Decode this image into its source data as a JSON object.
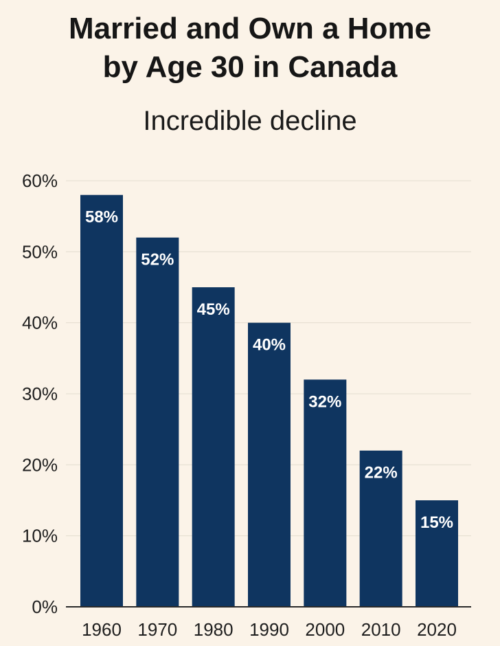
{
  "chart_data": {
    "type": "bar",
    "title_lines": [
      "Married and Own a Home",
      "by Age 30 in Canada"
    ],
    "subtitle": "Incredible decline",
    "categories": [
      "1960",
      "1970",
      "1980",
      "1990",
      "2000",
      "2010",
      "2020"
    ],
    "values": [
      58,
      52,
      45,
      40,
      32,
      22,
      15
    ],
    "data_labels": [
      "58%",
      "52%",
      "45%",
      "40%",
      "32%",
      "22%",
      "15%"
    ],
    "y_ticks": [
      0,
      10,
      20,
      30,
      40,
      50,
      60
    ],
    "y_tick_labels": [
      "0%",
      "10%",
      "20%",
      "30%",
      "40%",
      "50%",
      "60%"
    ],
    "ylim": [
      0,
      60
    ],
    "xlabel": "",
    "ylabel": "",
    "grid": true,
    "bar_color": "#0f3560",
    "grid_color": "#e3dccf",
    "axis_color": "#2a2a2a"
  }
}
